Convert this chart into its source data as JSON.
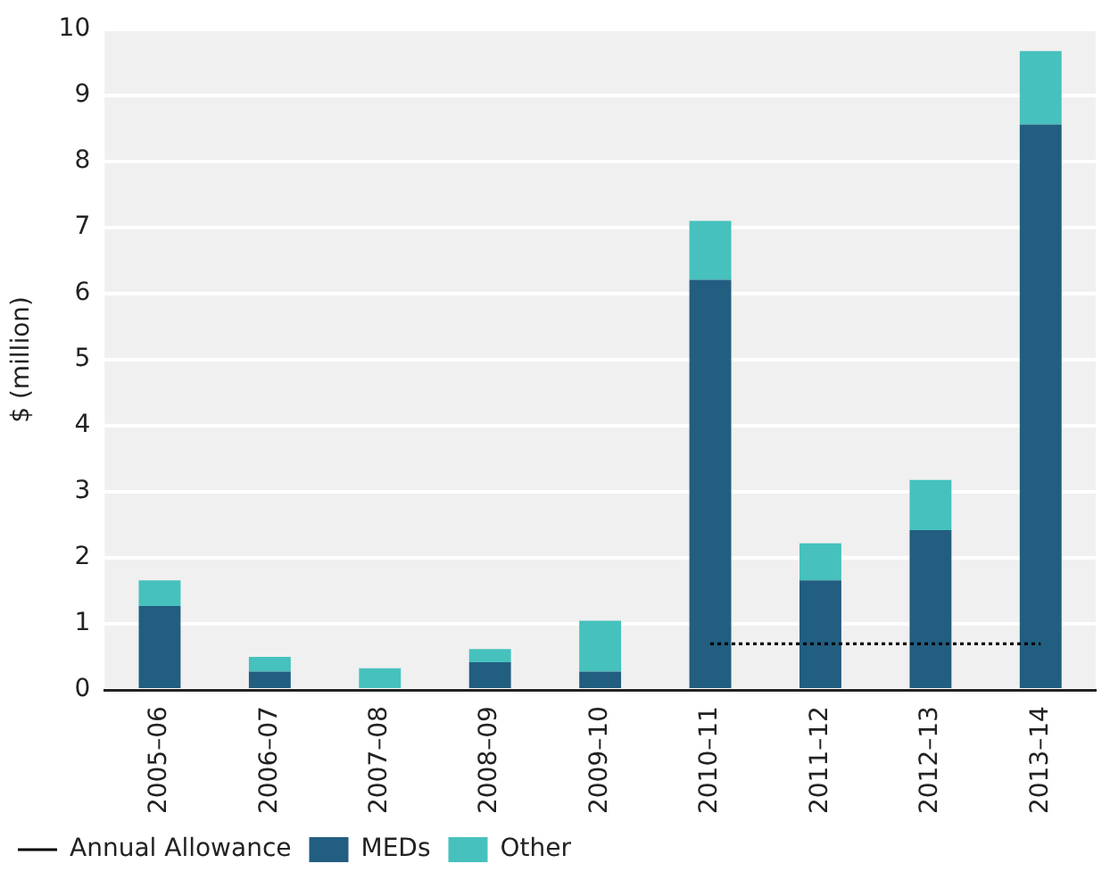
{
  "chart_data": {
    "type": "bar",
    "ylabel": "$ (million)",
    "stacked": true,
    "categories": [
      "2005–06",
      "2006–07",
      "2007–08",
      "2008–09",
      "2009–10",
      "2010–11",
      "2011–12",
      "2012–13",
      "2013–14"
    ],
    "series": [
      {
        "name": "MEDs",
        "color": "#225e80",
        "values": [
          1.27,
          0.28,
          0,
          0.42,
          0.28,
          6.21,
          1.66,
          2.42,
          8.56
        ]
      },
      {
        "name": "Other",
        "color": "#46c1bd",
        "values": [
          0.39,
          0.22,
          0.33,
          0.2,
          0.77,
          0.89,
          0.56,
          0.76,
          1.11
        ]
      },
      {
        "name": "Annual Allowance",
        "type": "line",
        "color": "#000000",
        "line_style": "dotted",
        "marker": "none",
        "values": [
          null,
          null,
          null,
          null,
          null,
          0.7,
          0.7,
          0.7,
          0.7
        ]
      }
    ],
    "ylim": [
      0,
      10
    ],
    "yticks": [
      0,
      1,
      2,
      3,
      4,
      5,
      6,
      7,
      8,
      9,
      10
    ],
    "grid": "y",
    "legend": "bottom"
  }
}
